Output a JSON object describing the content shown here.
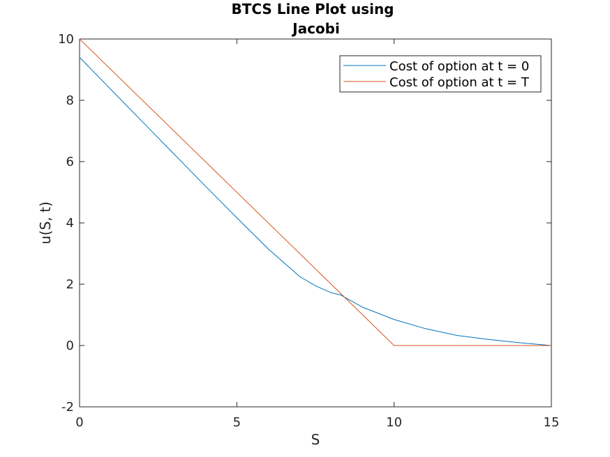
{
  "chart_data": {
    "type": "line",
    "title_lines": [
      "BTCS Line Plot using",
      "Jacobi"
    ],
    "xlabel": "S",
    "ylabel": "u(S, t)",
    "xlim": [
      0,
      15
    ],
    "ylim": [
      -2,
      10
    ],
    "xticks": [
      0,
      5,
      10,
      15
    ],
    "yticks": [
      -2,
      0,
      2,
      4,
      6,
      8,
      10
    ],
    "grid": false,
    "legend_position": "top-right",
    "series": [
      {
        "name": "Cost of option at t = 0",
        "color": "#0072BD",
        "x": [
          0,
          1,
          2,
          3,
          4,
          5,
          6,
          7,
          7.5,
          8,
          8.3,
          9,
          10,
          11,
          12,
          13,
          14,
          15
        ],
        "y": [
          9.4,
          8.35,
          7.3,
          6.25,
          5.2,
          4.17,
          3.15,
          2.25,
          1.95,
          1.72,
          1.65,
          1.25,
          0.85,
          0.55,
          0.33,
          0.2,
          0.09,
          0.0
        ]
      },
      {
        "name": "Cost of option at t = T",
        "color": "#D95319",
        "x": [
          0,
          10,
          15
        ],
        "y": [
          10,
          0,
          0
        ]
      }
    ]
  }
}
